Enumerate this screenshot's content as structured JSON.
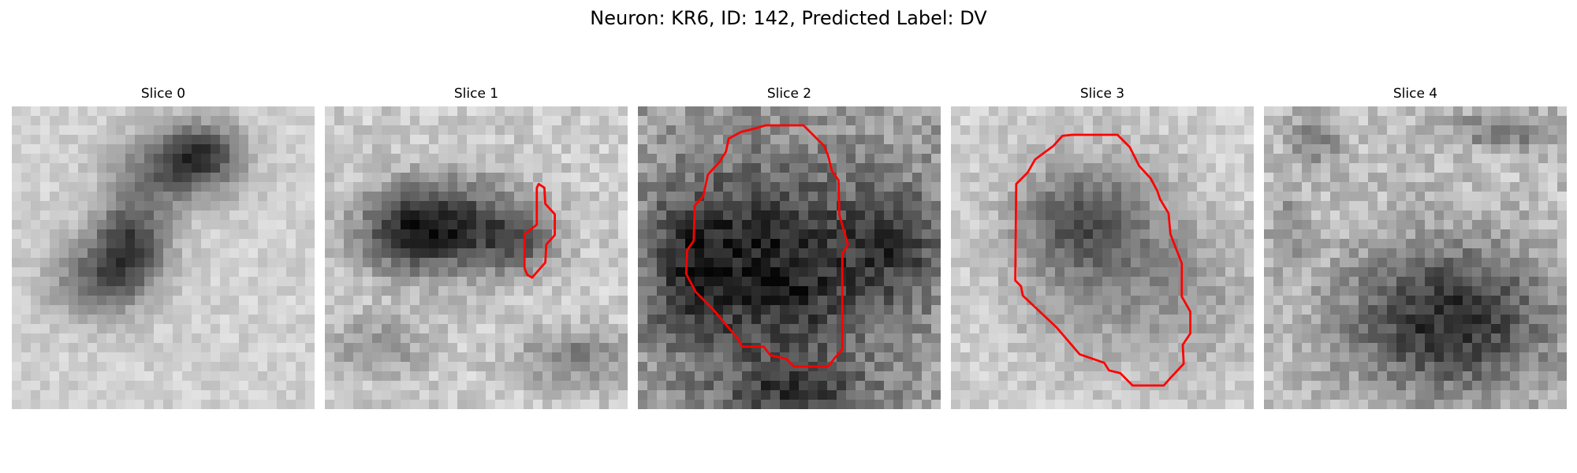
{
  "figure": {
    "title": "Neuron: KR6, ID: 142, Predicted Label: DV"
  },
  "panels": [
    {
      "title": "Slice 0",
      "contour": false
    },
    {
      "title": "Slice 1",
      "contour": true
    },
    {
      "title": "Slice 2",
      "contour": true
    },
    {
      "title": "Slice 3",
      "contour": true
    },
    {
      "title": "Slice 4",
      "contour": false
    }
  ],
  "colors": {
    "contour": "#ff0000",
    "background": "#ffffff",
    "colormap": "grayscale"
  }
}
